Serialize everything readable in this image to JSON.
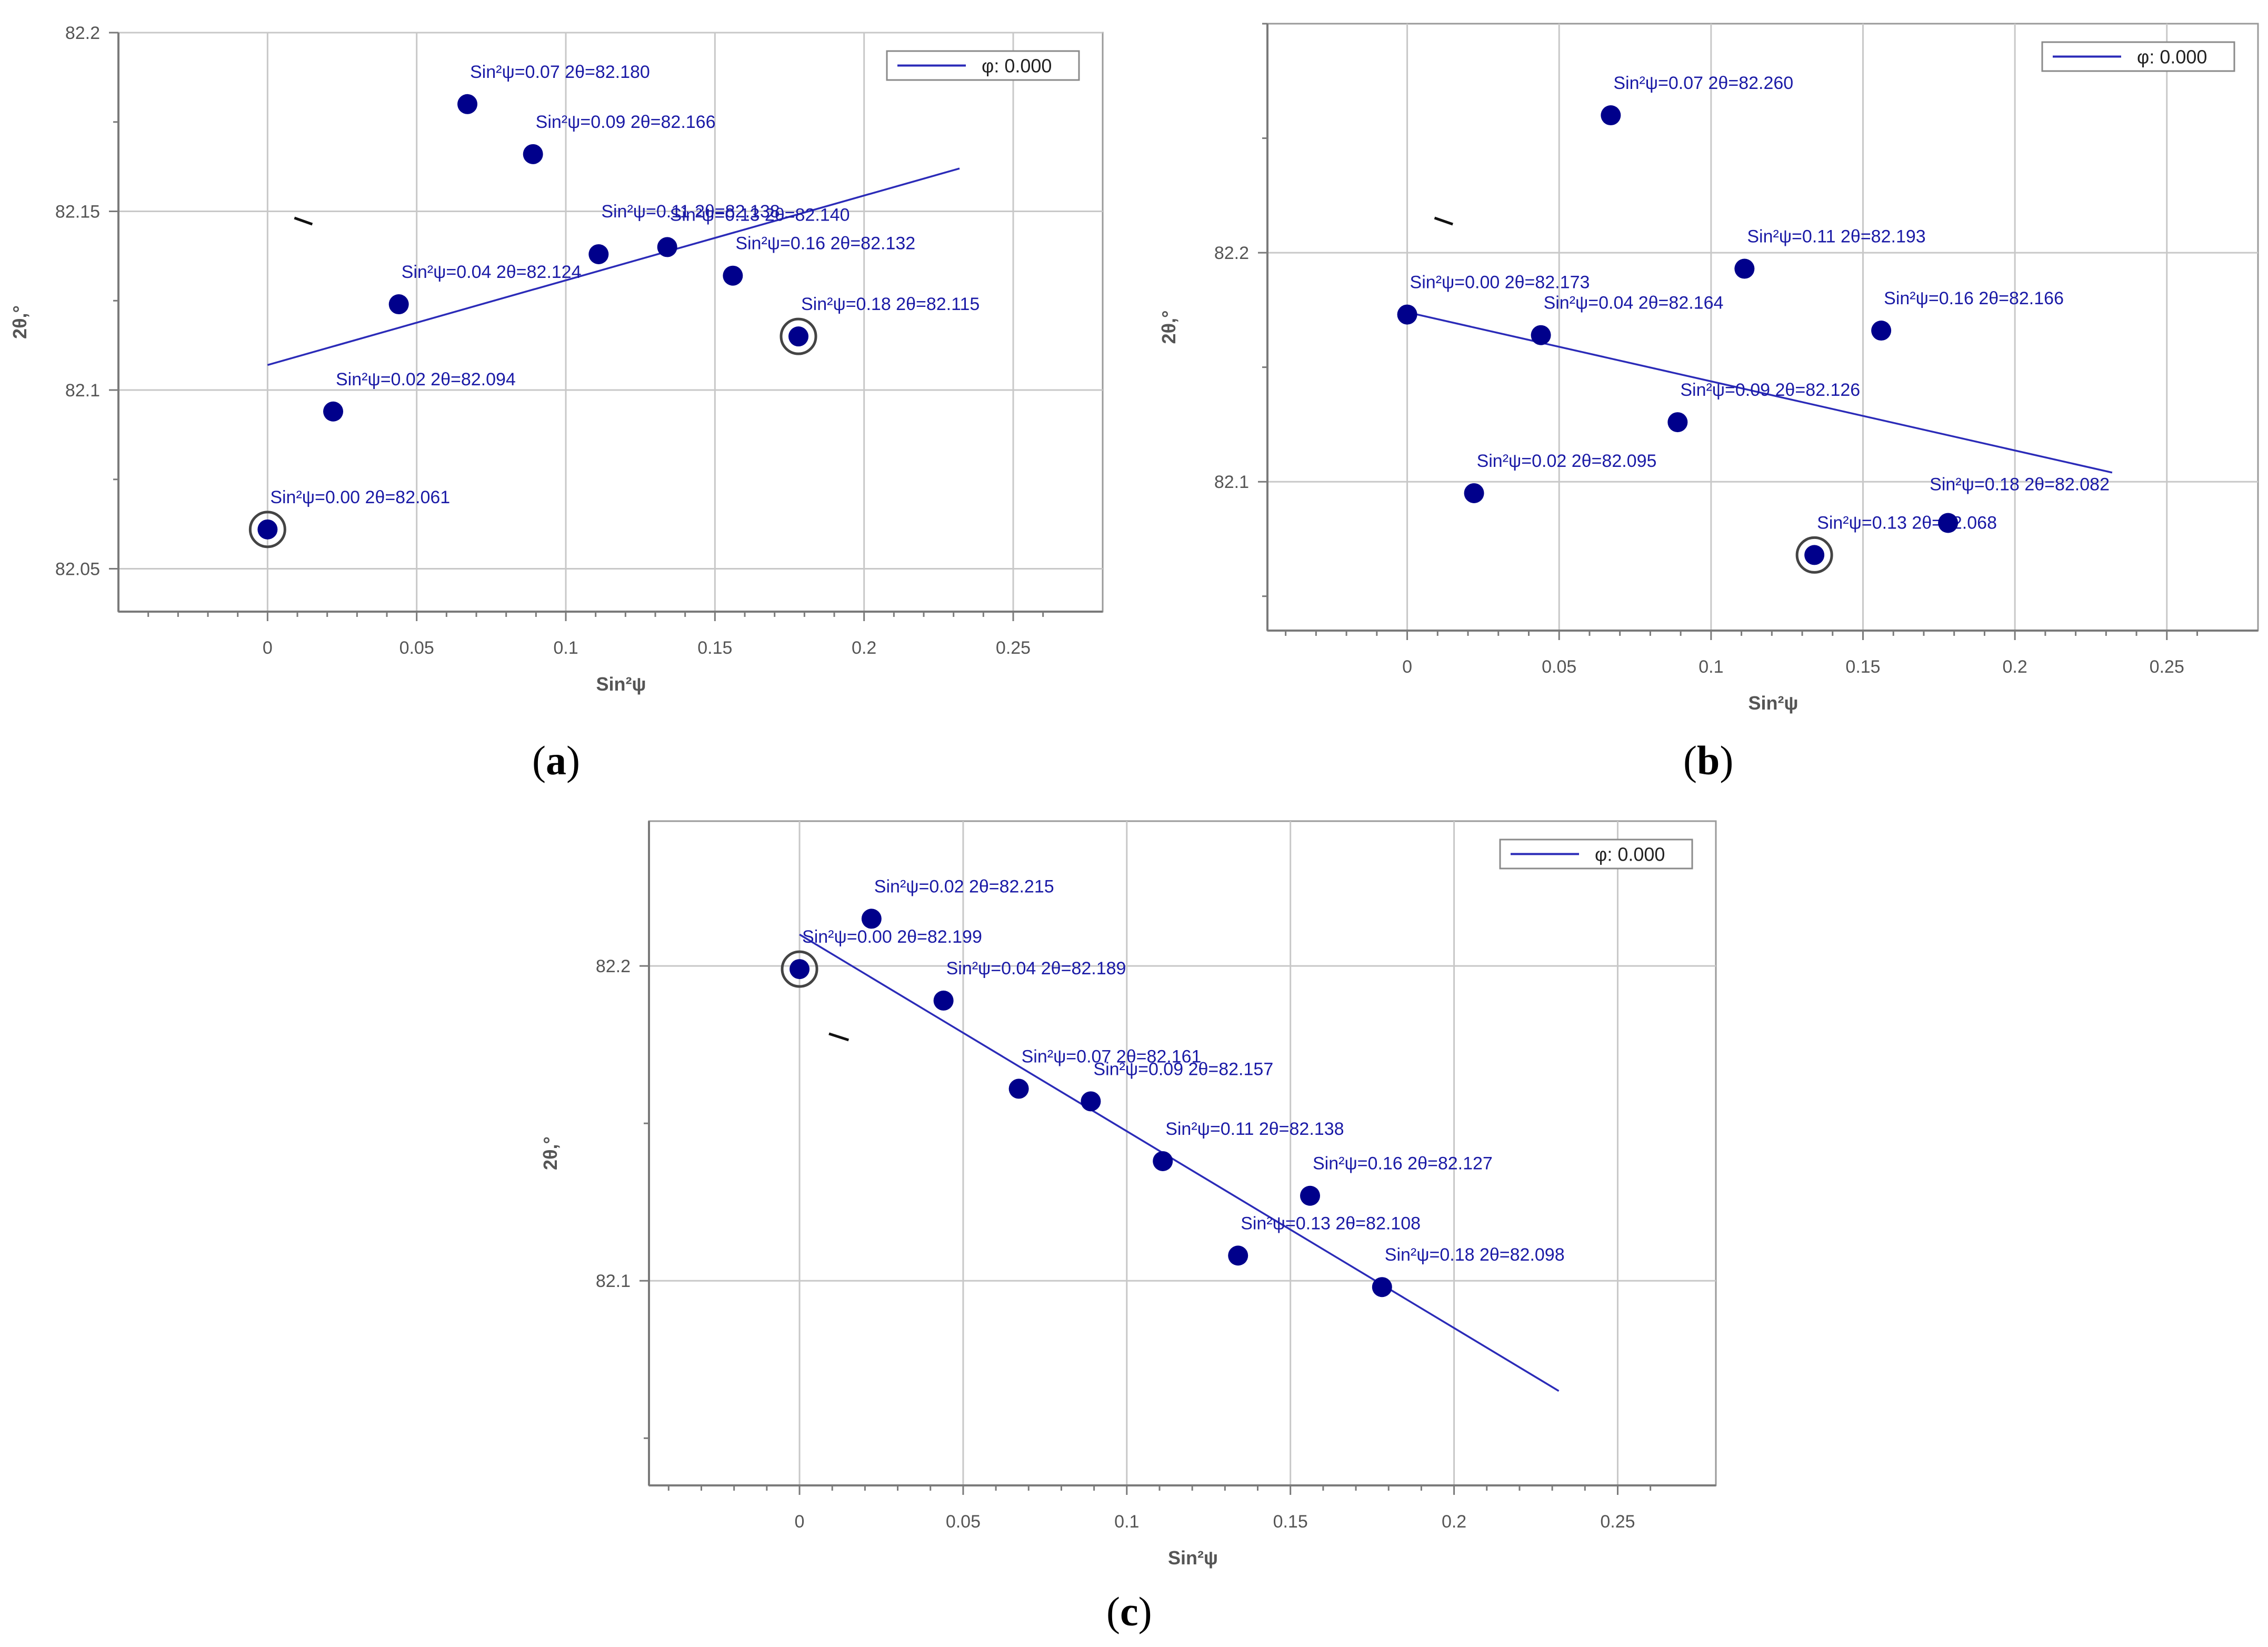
{
  "colors": {
    "point": "#00008B",
    "fit_line": "#2B2BB8",
    "annotation_text": "#1A1AA6",
    "grid": "#C8C8C8",
    "axes": "#7A7A7A",
    "axis_text": "#555555"
  },
  "captions": [
    {
      "open": "(",
      "letter": "a",
      "close": ")"
    },
    {
      "open": "(",
      "letter": "b",
      "close": ")"
    },
    {
      "open": "(",
      "letter": "c",
      "close": ")"
    }
  ],
  "chart_data": [
    {
      "type": "scatter",
      "xlabel": "Sin²ψ",
      "ylabel": "2θ,°",
      "xlim": [
        -0.05,
        0.28
      ],
      "ylim": [
        82.038,
        82.2
      ],
      "xticks": [
        0,
        0.05,
        0.1,
        0.15,
        0.2,
        0.25
      ],
      "xtick_labels": [
        "0",
        "0.05",
        "0.1",
        "0.15",
        "0.2",
        "0.25"
      ],
      "yticks": [
        82.05,
        82.1,
        82.15,
        82.2
      ],
      "ytick_labels": [
        "82.05",
        "82.1",
        "82.15",
        "82.2"
      ],
      "grid": true,
      "legend": {
        "position": "top-right",
        "entries": [
          "φ: 0.000"
        ]
      },
      "series": [
        {
          "kind": "points",
          "points": [
            {
              "x": 0.0,
              "y": 82.061,
              "label": "Sin²ψ=0.00 2θ=82.061",
              "circled": true
            },
            {
              "x": 0.022,
              "y": 82.094,
              "label": "Sin²ψ=0.02 2θ=82.094"
            },
            {
              "x": 0.044,
              "y": 82.124,
              "label": "Sin²ψ=0.04 2θ=82.124"
            },
            {
              "x": 0.067,
              "y": 82.18,
              "label": "Sin²ψ=0.07 2θ=82.180"
            },
            {
              "x": 0.089,
              "y": 82.166,
              "label": "Sin²ψ=0.09 2θ=82.166"
            },
            {
              "x": 0.111,
              "y": 82.138,
              "label": "Sin²ψ=0.11 2θ=82.138"
            },
            {
              "x": 0.134,
              "y": 82.14,
              "label": "Sin²ψ=0.13 2θ=82.140"
            },
            {
              "x": 0.156,
              "y": 82.132,
              "label": "Sin²ψ=0.16 2θ=82.132"
            },
            {
              "x": 0.178,
              "y": 82.115,
              "label": "Sin²ψ=0.18 2θ=82.115",
              "circled": true
            }
          ]
        },
        {
          "kind": "line",
          "name": "φ: 0.000",
          "x": [
            0.0,
            0.232
          ],
          "y": [
            82.107,
            82.162
          ]
        }
      ]
    },
    {
      "type": "scatter",
      "xlabel": "Sin²ψ",
      "ylabel": "2θ,°",
      "xlim": [
        -0.046,
        0.28
      ],
      "ylim": [
        82.035,
        82.3
      ],
      "xticks": [
        0,
        0.05,
        0.1,
        0.15,
        0.2,
        0.25
      ],
      "xtick_labels": [
        "0",
        "0.05",
        "0.1",
        "0.15",
        "0.2",
        "0.25"
      ],
      "yticks": [
        82.1,
        82.2
      ],
      "ytick_labels": [
        "82.1",
        "82.2"
      ],
      "grid": true,
      "legend": {
        "position": "top-right",
        "entries": [
          "φ: 0.000"
        ]
      },
      "series": [
        {
          "kind": "points",
          "points": [
            {
              "x": 0.0,
              "y": 82.173,
              "label": "Sin²ψ=0.00 2θ=82.173"
            },
            {
              "x": 0.022,
              "y": 82.095,
              "label": "Sin²ψ=0.02 2θ=82.095"
            },
            {
              "x": 0.044,
              "y": 82.164,
              "label": "Sin²ψ=0.04 2θ=82.164"
            },
            {
              "x": 0.067,
              "y": 82.26,
              "label": "Sin²ψ=0.07 2θ=82.260"
            },
            {
              "x": 0.089,
              "y": 82.126,
              "label": "Sin²ψ=0.09 2θ=82.126"
            },
            {
              "x": 0.111,
              "y": 82.193,
              "label": "Sin²ψ=0.11 2θ=82.193"
            },
            {
              "x": 0.134,
              "y": 82.068,
              "label": "Sin²ψ=0.13 2θ=82.068",
              "circled": true
            },
            {
              "x": 0.156,
              "y": 82.166,
              "label": "Sin²ψ=0.16 2θ=82.166"
            },
            {
              "x": 0.178,
              "y": 82.082,
              "label": "Sin²ψ=0.18 2θ=82.082"
            }
          ]
        },
        {
          "kind": "line",
          "name": "φ: 0.000",
          "x": [
            0.0,
            0.232
          ],
          "y": [
            82.174,
            82.104
          ]
        }
      ]
    },
    {
      "type": "scatter",
      "xlabel": "Sin²ψ",
      "ylabel": "2θ,°",
      "xlim": [
        -0.046,
        0.28
      ],
      "ylim": [
        82.035,
        82.246
      ],
      "xticks": [
        0,
        0.05,
        0.1,
        0.15,
        0.2,
        0.25
      ],
      "xtick_labels": [
        "0",
        "0.05",
        "0.1",
        "0.15",
        "0.2",
        "0.25"
      ],
      "yticks": [
        82.1,
        82.2
      ],
      "ytick_labels": [
        "82.1",
        "82.2"
      ],
      "grid": true,
      "legend": {
        "position": "top-right",
        "entries": [
          "φ: 0.000"
        ]
      },
      "series": [
        {
          "kind": "points",
          "points": [
            {
              "x": 0.0,
              "y": 82.199,
              "label": "Sin²ψ=0.00 2θ=82.199",
              "circled": true
            },
            {
              "x": 0.022,
              "y": 82.215,
              "label": "Sin²ψ=0.02 2θ=82.215"
            },
            {
              "x": 0.044,
              "y": 82.189,
              "label": "Sin²ψ=0.04 2θ=82.189"
            },
            {
              "x": 0.067,
              "y": 82.161,
              "label": "Sin²ψ=0.07 2θ=82.161"
            },
            {
              "x": 0.089,
              "y": 82.157,
              "label": "Sin²ψ=0.09 2θ=82.157"
            },
            {
              "x": 0.111,
              "y": 82.138,
              "label": "Sin²ψ=0.11 2θ=82.138"
            },
            {
              "x": 0.134,
              "y": 82.108,
              "label": "Sin²ψ=0.13 2θ=82.108"
            },
            {
              "x": 0.156,
              "y": 82.127,
              "label": "Sin²ψ=0.16 2θ=82.127"
            },
            {
              "x": 0.178,
              "y": 82.098,
              "label": "Sin²ψ=0.18 2θ=82.098"
            }
          ]
        },
        {
          "kind": "line",
          "name": "φ: 0.000",
          "x": [
            0.0,
            0.232
          ],
          "y": [
            82.21,
            82.065
          ]
        }
      ]
    }
  ]
}
